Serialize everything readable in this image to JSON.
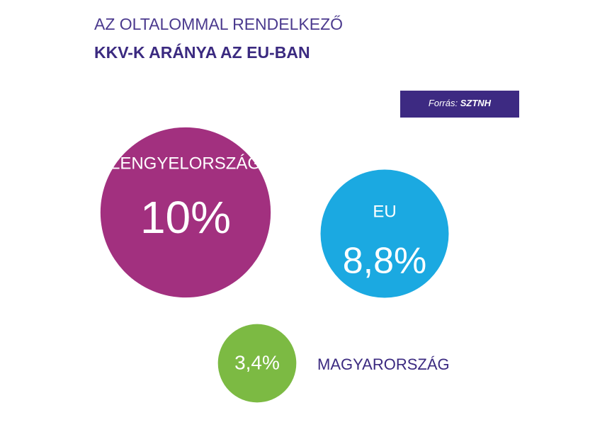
{
  "chart_data": {
    "type": "bubble",
    "title": "AZ OLTALOMMAL RENDELKEZŐ",
    "subtitle": "KKV-K ARÁNYA AZ EU-BAN",
    "source_label": "Forrás:",
    "source": "SZTNH",
    "categories": [
      "LENGYELORSZÁG",
      "EU",
      "MAGYARORSZÁG"
    ],
    "values": [
      10,
      8.8,
      3.4
    ],
    "value_labels": [
      "10%",
      "8,8%",
      "3,4%"
    ],
    "colors": [
      "#a2307f",
      "#1ba9e1",
      "#7cba43"
    ]
  }
}
